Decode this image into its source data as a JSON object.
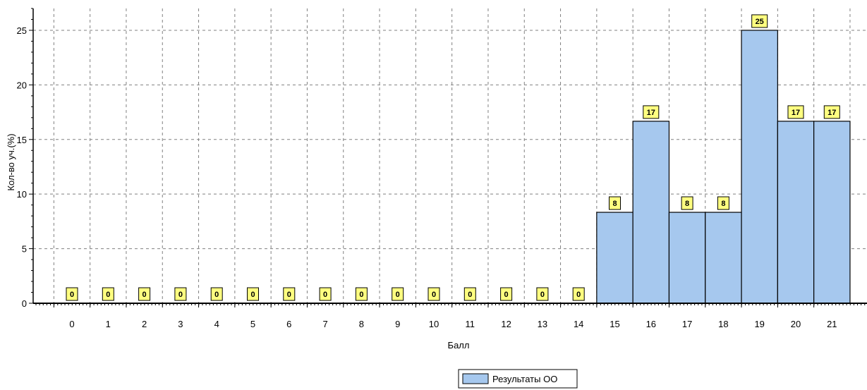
{
  "chart_data": {
    "type": "bar",
    "categories": [
      "0",
      "1",
      "2",
      "3",
      "4",
      "5",
      "6",
      "7",
      "8",
      "9",
      "10",
      "11",
      "12",
      "13",
      "14",
      "15",
      "16",
      "17",
      "18",
      "19",
      "20",
      "21"
    ],
    "values": [
      0,
      0,
      0,
      0,
      0,
      0,
      0,
      0,
      0,
      0,
      0,
      0,
      0,
      0,
      0,
      8.33,
      16.67,
      8.33,
      8.33,
      25,
      16.67,
      16.67
    ],
    "data_labels": [
      "0",
      "0",
      "0",
      "0",
      "0",
      "0",
      "0",
      "0",
      "0",
      "0",
      "0",
      "0",
      "0",
      "0",
      "0",
      "8",
      "17",
      "8",
      "8",
      "25",
      "17",
      "17"
    ],
    "y_ticks": [
      "0",
      "5",
      "10",
      "15",
      "20",
      "25"
    ],
    "ylim": [
      0,
      27
    ],
    "xlabel": "Балл",
    "ylabel": "Кол-во уч.(%)",
    "grid": true,
    "legend_position": "bottom-center",
    "series": [
      {
        "name": "Результаты ОО",
        "color": "#a6c8ee"
      }
    ],
    "colors": {
      "bar_fill": "#a6c8ee",
      "bar_stroke": "#000000",
      "label_bg": "#ffff80",
      "grid": "#808080"
    }
  }
}
